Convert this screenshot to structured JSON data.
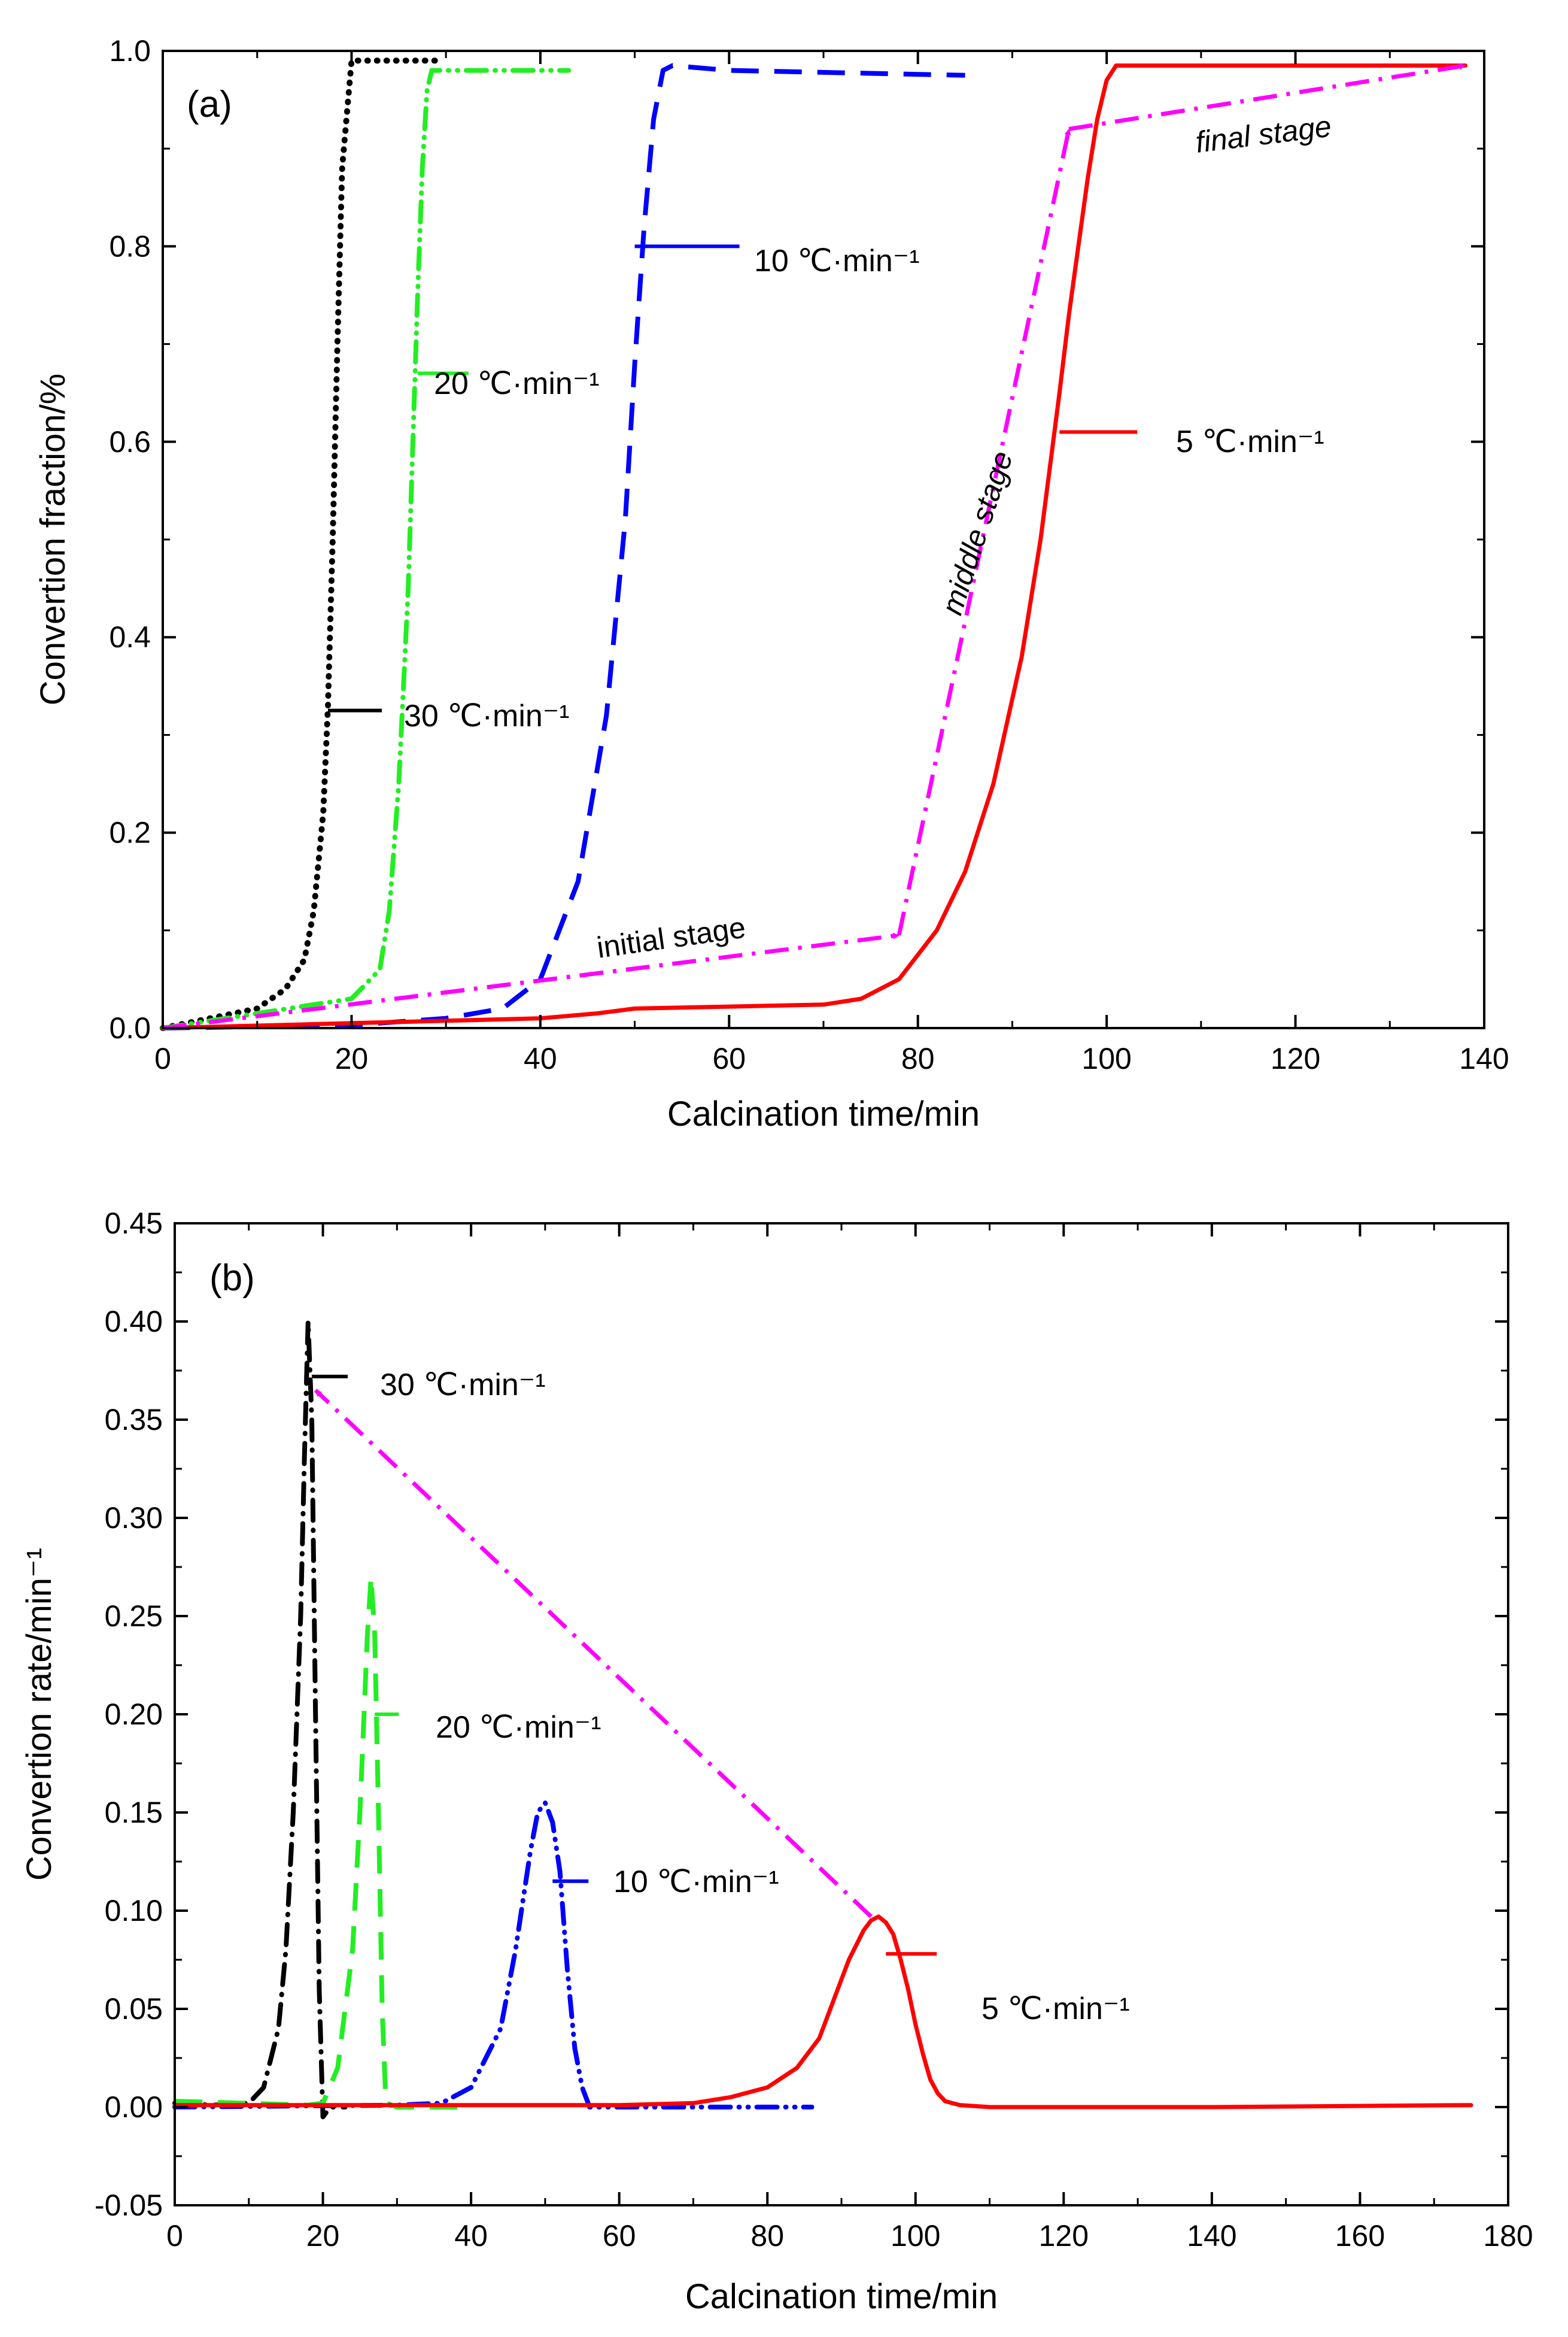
{
  "chart_data": [
    {
      "type": "line",
      "panel_label": "(a)",
      "xlabel": "Calcination time/min",
      "ylabel": "Convertion fraction/%",
      "xlim": [
        0,
        140
      ],
      "ylim": [
        0,
        1.0
      ],
      "xticks": [
        0,
        20,
        40,
        60,
        80,
        100,
        120,
        140
      ],
      "xtick_labels": [
        "0",
        "20",
        "40",
        "60",
        "80",
        "100",
        "120",
        "140"
      ],
      "yticks": [
        0,
        0.2,
        0.4,
        0.6,
        0.8,
        1.0
      ],
      "ytick_labels": [
        "0.0",
        "0.2",
        "0.4",
        "0.6",
        "0.8",
        "1.0"
      ],
      "grid": false,
      "series": [
        {
          "label": "30 ℃·min⁻¹",
          "color": "#000000",
          "style": "dotted",
          "x": [
            0,
            5,
            10,
            13,
            15,
            16,
            17,
            17.5,
            18,
            18.5,
            19,
            20,
            24,
            29
          ],
          "y": [
            0,
            0.01,
            0.02,
            0.04,
            0.07,
            0.12,
            0.22,
            0.33,
            0.5,
            0.7,
            0.88,
            0.99,
            0.99,
            0.99
          ],
          "annotation": {
            "text": "30 ℃·min⁻¹",
            "x_data": 17.5,
            "y_data": 0.325
          }
        },
        {
          "label": "20 ℃·min⁻¹",
          "color": "#22ee22",
          "style": "dash-dot-dot",
          "x": [
            0,
            10,
            20,
            23,
            24,
            25,
            26,
            26.5,
            27,
            27.5,
            28,
            28.5,
            30,
            43
          ],
          "y": [
            0,
            0.015,
            0.03,
            0.06,
            0.12,
            0.25,
            0.45,
            0.6,
            0.75,
            0.88,
            0.96,
            0.98,
            0.98,
            0.98
          ],
          "annotation": {
            "text": "20 ℃·min⁻¹",
            "x_data": 27,
            "y_data": 0.67
          }
        },
        {
          "label": "10 ℃·min⁻¹",
          "color": "#0000ff",
          "style": "dashed",
          "x": [
            0,
            20,
            30,
            36,
            40,
            44,
            47,
            49,
            50,
            51,
            52,
            53,
            54,
            60,
            85
          ],
          "y": [
            0,
            0.003,
            0.01,
            0.02,
            0.05,
            0.15,
            0.32,
            0.52,
            0.68,
            0.82,
            0.93,
            0.98,
            0.985,
            0.98,
            0.975
          ],
          "annotation": {
            "text": "10 ℃·min⁻¹",
            "x_data": 50,
            "y_data": 0.8
          }
        },
        {
          "label": "5 ℃·min⁻¹",
          "color": "#ff0000",
          "style": "solid",
          "x": [
            0,
            20,
            40,
            46,
            50,
            60,
            70,
            74,
            78,
            82,
            85,
            88,
            91,
            93,
            95,
            96,
            97,
            98,
            99,
            100,
            101,
            110,
            138
          ],
          "y": [
            0,
            0.005,
            0.01,
            0.015,
            0.02,
            0.022,
            0.024,
            0.03,
            0.05,
            0.1,
            0.16,
            0.25,
            0.38,
            0.5,
            0.65,
            0.73,
            0.8,
            0.87,
            0.93,
            0.97,
            0.985,
            0.985,
            0.985
          ],
          "annotation": {
            "text": "5 ℃·min⁻¹",
            "x_data": 95,
            "y_data": 0.61
          }
        }
      ],
      "stage_arrows": [
        {
          "text": "initial stage",
          "from": [
            0,
            0
          ],
          "to": [
            78,
            0.095
          ]
        },
        {
          "text": "middle stage",
          "from": [
            78,
            0.095
          ],
          "to": [
            96,
            0.92
          ]
        },
        {
          "text": "final stage",
          "from": [
            96,
            0.92
          ],
          "to": [
            138,
            0.985
          ]
        }
      ],
      "arrow_color": "#ff00ff"
    },
    {
      "type": "line",
      "panel_label": "(b)",
      "xlabel": "Calcination time/min",
      "ylabel": "Convertion rate/min⁻¹",
      "xlim": [
        0,
        180
      ],
      "ylim": [
        -0.05,
        0.45
      ],
      "xticks": [
        0,
        20,
        40,
        60,
        80,
        100,
        120,
        140,
        160,
        180
      ],
      "xtick_labels": [
        "0",
        "20",
        "40",
        "60",
        "80",
        "100",
        "120",
        "140",
        "160",
        "180"
      ],
      "yticks": [
        -0.05,
        0,
        0.05,
        0.1,
        0.15,
        0.2,
        0.25,
        0.3,
        0.35,
        0.4,
        0.45
      ],
      "ytick_labels": [
        "-0.05",
        "0.00",
        "0.05",
        "0.10",
        "0.15",
        "0.20",
        "0.25",
        "0.30",
        "0.35",
        "0.40",
        "0.45"
      ],
      "grid": false,
      "series": [
        {
          "label": "30 ℃·min⁻¹",
          "color": "#000000",
          "style": "dash-dot",
          "x": [
            0,
            5,
            10,
            12,
            14,
            15,
            16,
            17,
            17.5,
            18,
            18.5,
            19,
            19.5,
            20,
            21,
            23
          ],
          "y": [
            0.002,
            0.001,
            0.002,
            0.01,
            0.04,
            0.08,
            0.15,
            0.25,
            0.33,
            0.4,
            0.35,
            0.2,
            0.06,
            -0.005,
            0.0,
            0.0
          ],
          "annotation": {
            "text": "30 ℃·min⁻¹",
            "x_data": 18.5,
            "y_data": 0.372
          }
        },
        {
          "label": "20 ℃·min⁻¹",
          "color": "#22ee22",
          "style": "dashed",
          "x": [
            0,
            18,
            20,
            22,
            24,
            25,
            26,
            26.5,
            27,
            27.5,
            28,
            28.5,
            30,
            40
          ],
          "y": [
            0.003,
            0.001,
            0.002,
            0.02,
            0.08,
            0.15,
            0.24,
            0.27,
            0.24,
            0.15,
            0.05,
            0.002,
            0.0,
            0.0
          ],
          "annotation": {
            "text": "20 ℃·min⁻¹",
            "x_data": 27,
            "y_data": 0.2
          }
        },
        {
          "label": "10 ℃·min⁻¹",
          "color": "#0000ff",
          "style": "dash-dot-dot",
          "x": [
            0,
            30,
            36,
            40,
            44,
            46,
            48,
            49,
            50,
            51,
            52,
            53,
            54,
            55,
            56,
            58,
            86
          ],
          "y": [
            0,
            0.001,
            0.002,
            0.01,
            0.04,
            0.08,
            0.13,
            0.15,
            0.155,
            0.145,
            0.12,
            0.07,
            0.03,
            0.01,
            0.0,
            0.0,
            0.0
          ],
          "annotation": {
            "text": "10 ℃·min⁻¹",
            "x_data": 51,
            "y_data": 0.115
          }
        },
        {
          "label": "5 ℃·min⁻¹",
          "color": "#ff0000",
          "style": "solid",
          "x": [
            0,
            20,
            40,
            60,
            70,
            75,
            80,
            84,
            87,
            89,
            91,
            93,
            94,
            95,
            96,
            97,
            98,
            99,
            100,
            101,
            102,
            103,
            104,
            106,
            110,
            140,
            175
          ],
          "y": [
            0.001,
            0.001,
            0.001,
            0.001,
            0.002,
            0.005,
            0.01,
            0.02,
            0.035,
            0.055,
            0.075,
            0.09,
            0.095,
            0.097,
            0.094,
            0.088,
            0.075,
            0.06,
            0.042,
            0.027,
            0.014,
            0.007,
            0.003,
            0.001,
            0.0,
            0.0,
            0.001
          ],
          "annotation": {
            "text": "5 ℃·min⁻¹",
            "x_data": 96,
            "y_data": 0.078
          }
        }
      ],
      "peak_arrow": {
        "from": [
          94,
          0.097
        ],
        "to": [
          19,
          0.365
        ]
      },
      "arrow_color": "#ff00ff"
    }
  ]
}
